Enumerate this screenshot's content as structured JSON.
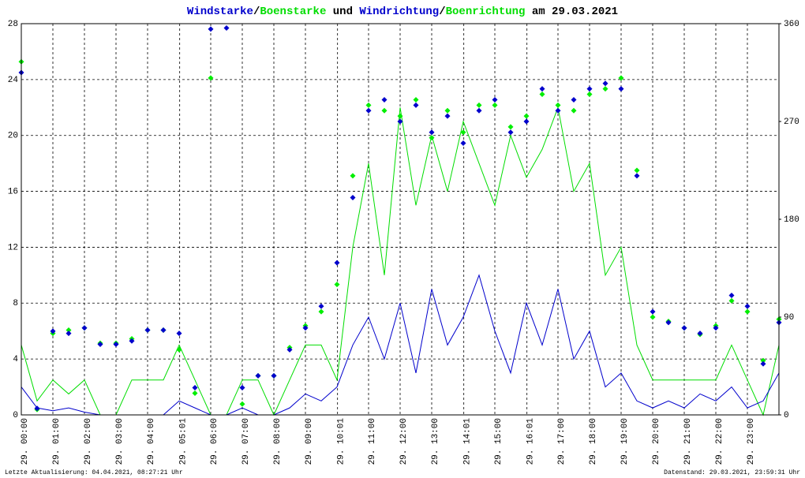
{
  "chart_data": {
    "type": "line",
    "title_connectors": [
      "/",
      " und ",
      "/",
      " am 29.03.2021"
    ],
    "footer_left": "Letzte Aktualisierung: 04.04.2021, 08:27:21 Uhr",
    "footer_right": "Datenstand: 29.03.2021, 23:59:31 Uhr",
    "xlim": [
      0,
      24
    ],
    "xticks": [
      {
        "value": 0,
        "label": "29. 00:00"
      },
      {
        "value": 1,
        "label": "29. 01:00"
      },
      {
        "value": 2,
        "label": "29. 02:00"
      },
      {
        "value": 3,
        "label": "29. 03:00"
      },
      {
        "value": 4,
        "label": "29. 04:00"
      },
      {
        "value": 5.017,
        "label": "29. 05:01"
      },
      {
        "value": 6,
        "label": "29. 06:00"
      },
      {
        "value": 7,
        "label": "29. 07:00"
      },
      {
        "value": 8,
        "label": "29. 08:00"
      },
      {
        "value": 9,
        "label": "29. 09:00"
      },
      {
        "value": 10.017,
        "label": "29. 10:01"
      },
      {
        "value": 11,
        "label": "29. 11:00"
      },
      {
        "value": 12,
        "label": "29. 12:00"
      },
      {
        "value": 13,
        "label": "29. 13:00"
      },
      {
        "value": 14.017,
        "label": "29. 14:01"
      },
      {
        "value": 15,
        "label": "29. 15:00"
      },
      {
        "value": 16.017,
        "label": "29. 16:01"
      },
      {
        "value": 17,
        "label": "29. 17:00"
      },
      {
        "value": 18,
        "label": "29. 18:00"
      },
      {
        "value": 19,
        "label": "29. 19:00"
      },
      {
        "value": 20,
        "label": "29. 20:00"
      },
      {
        "value": 21,
        "label": "29. 21:00"
      },
      {
        "value": 22,
        "label": "29. 22:00"
      },
      {
        "value": 23,
        "label": "29. 23:00"
      }
    ],
    "ylim": [
      0,
      28
    ],
    "yticks": [
      0,
      4,
      8,
      12,
      16,
      20,
      24,
      28
    ],
    "y2lim": [
      0,
      360
    ],
    "y2ticks": [
      0,
      90,
      180,
      270,
      360
    ],
    "grid": true,
    "x": [
      0,
      0.5,
      1,
      1.5,
      2,
      2.5,
      3,
      3.5,
      4,
      4.5,
      5,
      5.5,
      6,
      6.5,
      7,
      7.5,
      8,
      8.5,
      9,
      9.5,
      10,
      10.5,
      11,
      11.5,
      12,
      12.5,
      13,
      13.5,
      14,
      14.5,
      15,
      15.5,
      16,
      16.5,
      17,
      17.5,
      18,
      18.5,
      19,
      19.5,
      20,
      20.5,
      21,
      21.5,
      22,
      22.5,
      23,
      23.5,
      24
    ],
    "series": [
      {
        "name": "Windstarke",
        "color": "#0000cc",
        "kind": "line",
        "values": [
          2,
          0.5,
          0.3,
          0.5,
          0.2,
          0,
          0,
          0,
          0,
          0,
          1,
          0.5,
          0,
          0,
          0.5,
          0,
          0,
          0.5,
          1.5,
          1,
          2,
          5,
          7,
          4,
          8,
          3,
          9,
          5,
          7,
          10,
          6,
          3,
          8,
          5,
          9,
          4,
          6,
          2,
          3,
          1,
          0.5,
          1,
          0.5,
          1.5,
          1,
          2,
          0.5,
          1,
          3
        ]
      },
      {
        "name": "Boenstarke",
        "color": "#00dd00",
        "kind": "line",
        "values": [
          5,
          1,
          2.5,
          1.5,
          2.5,
          0,
          0,
          2.5,
          2.5,
          2.5,
          5,
          2.5,
          0,
          0,
          2.5,
          2.5,
          0,
          2.5,
          5,
          5,
          2.5,
          12,
          18,
          10,
          22,
          15,
          20,
          16,
          21,
          18,
          15,
          20,
          17,
          19,
          22,
          16,
          18,
          10,
          12,
          5,
          2.5,
          2.5,
          2.5,
          2.5,
          2.5,
          5,
          2.5,
          0,
          5
        ]
      },
      {
        "name": "Windrichtung",
        "color": "#0000cc",
        "kind": "dots",
        "axis": "y2",
        "values": [
          315,
          6,
          77,
          75,
          80,
          65,
          65,
          68,
          78,
          78,
          75,
          25,
          355,
          356,
          25,
          36,
          36,
          60,
          80,
          100,
          140,
          200,
          280,
          290,
          270,
          285,
          260,
          275,
          250,
          280,
          290,
          260,
          270,
          300,
          280,
          290,
          300,
          305,
          300,
          220,
          95,
          85,
          80,
          75,
          80,
          110,
          100,
          47,
          85
        ]
      },
      {
        "name": "Boenrichtung",
        "color": "#00ee00",
        "kind": "dots",
        "axis": "y2",
        "values": [
          325,
          5,
          75,
          78,
          80,
          66,
          66,
          70,
          78,
          78,
          60,
          20,
          310,
          null,
          10,
          36,
          36,
          62,
          82,
          95,
          120,
          220,
          285,
          280,
          275,
          290,
          255,
          280,
          260,
          285,
          285,
          265,
          275,
          295,
          285,
          280,
          295,
          300,
          310,
          225,
          90,
          86,
          80,
          74,
          82,
          105,
          95,
          50,
          88
        ]
      }
    ]
  }
}
